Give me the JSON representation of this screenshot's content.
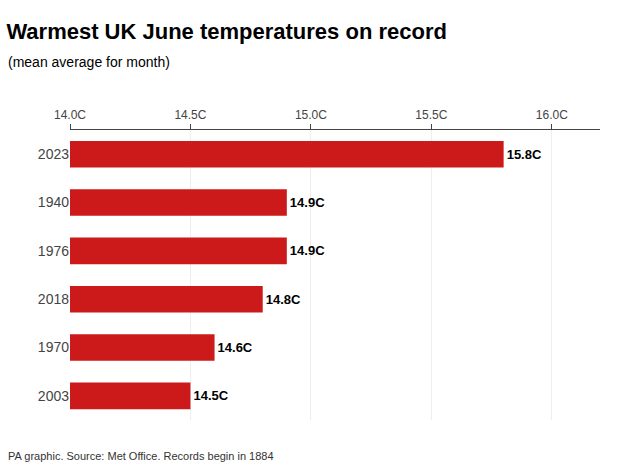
{
  "chart_data": {
    "type": "bar",
    "orientation": "horizontal",
    "title": "Warmest UK June temperatures on record",
    "subtitle": "(mean average for month)",
    "annotations": [
      "PA graphic. Source: Met Office. Records begin in 1884"
    ],
    "categories": [
      "2023",
      "1940",
      "1976",
      "2018",
      "1970",
      "2003"
    ],
    "values": [
      15.8,
      14.9,
      14.9,
      14.8,
      14.6,
      14.5
    ],
    "value_labels": [
      "15.8C",
      "14.9C",
      "14.9C",
      "14.8C",
      "14.6C",
      "14.5C"
    ],
    "data_labels": true,
    "color": "#cc1a1a",
    "xlim": [
      14.0,
      16.2
    ],
    "xticks": [
      {
        "value": 14.0,
        "label": "14.0C"
      },
      {
        "value": 14.5,
        "label": "14.5C"
      },
      {
        "value": 15.0,
        "label": "15.0C"
      },
      {
        "value": 15.5,
        "label": "15.5C"
      },
      {
        "value": 16.0,
        "label": "16.0C"
      }
    ],
    "grid": true
  }
}
